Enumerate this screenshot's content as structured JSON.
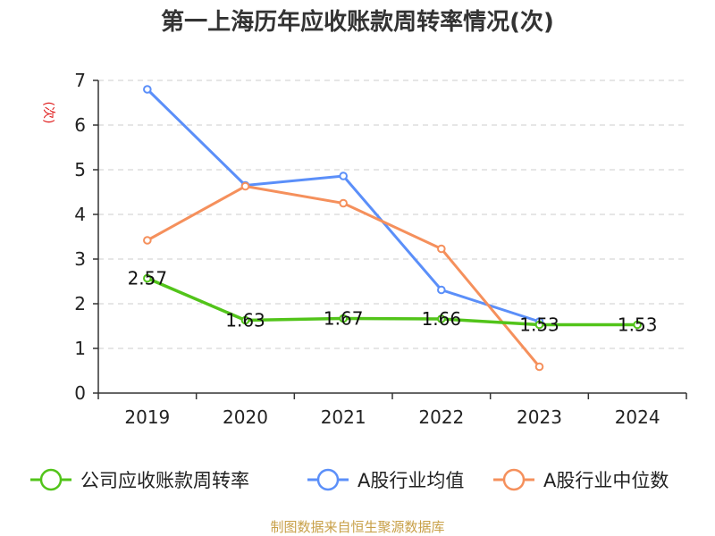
{
  "chart_data": {
    "type": "line",
    "title": "第一上海历年应收账款周转率情况(次)",
    "ylabel": "(次)",
    "xlabel": "",
    "categories": [
      "2019",
      "2020",
      "2021",
      "2022",
      "2023",
      "2024"
    ],
    "ylim": [
      0,
      7
    ],
    "yticks": [
      "0",
      "1",
      "2",
      "3",
      "4",
      "5",
      "6",
      "7"
    ],
    "grid": true,
    "legend_position": "bottom",
    "series": [
      {
        "name": "公司应收账款周转率",
        "color": "#52c41a",
        "values": [
          2.57,
          1.63,
          1.67,
          1.66,
          1.53,
          1.53
        ],
        "labels": [
          "2.57",
          "1.63",
          "1.67",
          "1.66",
          "1.53",
          "1.53"
        ]
      },
      {
        "name": "A股行业均值",
        "color": "#5b8ff9",
        "values": [
          6.8,
          4.65,
          4.86,
          2.31,
          1.6,
          null
        ]
      },
      {
        "name": "A股行业中位数",
        "color": "#f5905c",
        "values": [
          3.42,
          4.63,
          4.25,
          3.23,
          0.59,
          null
        ]
      }
    ],
    "source": "制图数据来自恒生聚源数据库",
    "colors": {
      "axis": "#333333",
      "grid": "#cccccc",
      "ylabel": "#e02020",
      "source": "#c8a048"
    }
  }
}
